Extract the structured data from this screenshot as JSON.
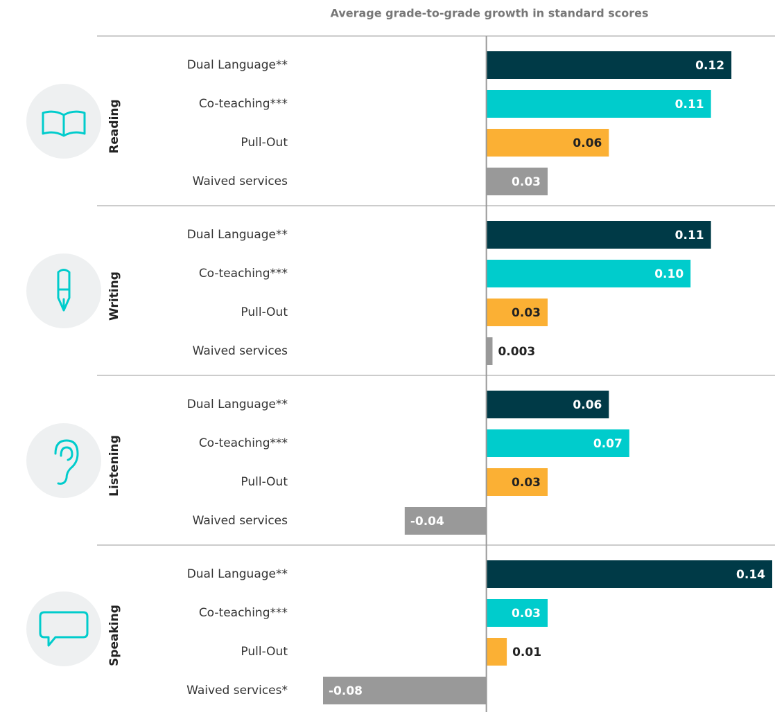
{
  "chart_data": {
    "type": "bar",
    "orientation": "horizontal",
    "title": "Average grade-to-grade growth in standard scores",
    "xlim": [
      -0.08,
      0.14
    ],
    "colors": [
      "#003a47",
      "#00cccc",
      "#fbb034",
      "#999999"
    ],
    "groups": [
      {
        "name": "Reading",
        "categories": [
          "Dual Language**",
          "Co-teaching***",
          "Pull-Out",
          "Waived services"
        ],
        "values": [
          0.12,
          0.11,
          0.06,
          0.03
        ],
        "value_labels": [
          "0.12",
          "0.11",
          "0.06",
          "0.03"
        ]
      },
      {
        "name": "Writing",
        "categories": [
          "Dual Language**",
          "Co-teaching***",
          "Pull-Out",
          "Waived services"
        ],
        "values": [
          0.11,
          0.1,
          0.03,
          0.003
        ],
        "value_labels": [
          "0.11",
          "0.10",
          "0.03",
          "0.003"
        ]
      },
      {
        "name": "Listening",
        "categories": [
          "Dual Language**",
          "Co-teaching***",
          "Pull-Out",
          "Waived services"
        ],
        "values": [
          0.06,
          0.07,
          0.03,
          -0.04
        ],
        "value_labels": [
          "0.06",
          "0.07",
          "0.03",
          "-0.04"
        ]
      },
      {
        "name": "Speaking",
        "categories": [
          "Dual Language**",
          "Co-teaching***",
          "Pull-Out",
          "Waived services*"
        ],
        "values": [
          0.14,
          0.03,
          0.01,
          -0.08
        ],
        "value_labels": [
          "0.14",
          "0.03",
          "0.01",
          "-0.08"
        ]
      }
    ]
  }
}
